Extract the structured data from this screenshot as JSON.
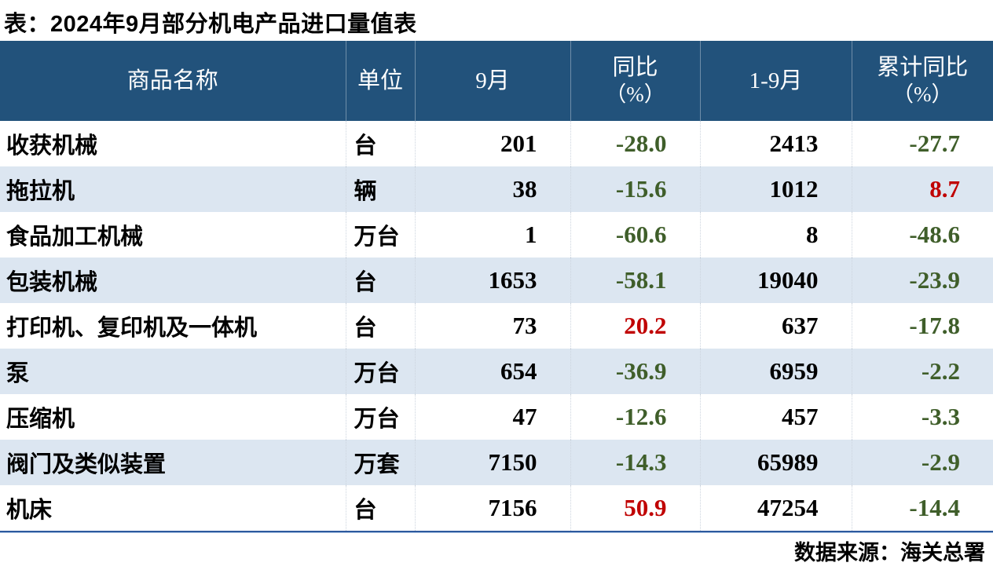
{
  "title": "表：2024年9月部分机电产品进口量值表",
  "source": "数据来源：海关总署",
  "colors": {
    "header_bg": "#22527b",
    "header_text": "#ffffff",
    "band_row": "#dce6f1",
    "negative_value": "#3f5e2a",
    "positive_value": "#c00000",
    "bottom_rule": "#2d5a9e"
  },
  "table": {
    "columns": [
      {
        "key": "name",
        "label": "商品名称",
        "sub": ""
      },
      {
        "key": "unit",
        "label": "单位",
        "sub": ""
      },
      {
        "key": "sep",
        "label": "9月",
        "sub": ""
      },
      {
        "key": "yoy",
        "label": "同比",
        "sub": "（%）"
      },
      {
        "key": "jan_sep",
        "label": "1-9月",
        "sub": ""
      },
      {
        "key": "cum_yoy",
        "label": "累计同比",
        "sub": "（%）"
      }
    ],
    "rows": [
      {
        "name": "收获机械",
        "unit": "台",
        "sep": "201",
        "yoy": "-28.0",
        "jan_sep": "2413",
        "cum_yoy": "-27.7"
      },
      {
        "name": "拖拉机",
        "unit": "辆",
        "sep": "38",
        "yoy": "-15.6",
        "jan_sep": "1012",
        "cum_yoy": "8.7"
      },
      {
        "name": "食品加工机械",
        "unit": "万台",
        "sep": "1",
        "yoy": "-60.6",
        "jan_sep": "8",
        "cum_yoy": "-48.6"
      },
      {
        "name": "包装机械",
        "unit": "台",
        "sep": "1653",
        "yoy": "-58.1",
        "jan_sep": "19040",
        "cum_yoy": "-23.9"
      },
      {
        "name": "打印机、复印机及一体机",
        "unit": "台",
        "sep": "73",
        "yoy": "20.2",
        "jan_sep": "637",
        "cum_yoy": "-17.8"
      },
      {
        "name": "泵",
        "unit": "万台",
        "sep": "654",
        "yoy": "-36.9",
        "jan_sep": "6959",
        "cum_yoy": "-2.2"
      },
      {
        "name": "压缩机",
        "unit": "万台",
        "sep": "47",
        "yoy": "-12.6",
        "jan_sep": "457",
        "cum_yoy": "-3.3"
      },
      {
        "name": "阀门及类似装置",
        "unit": "万套",
        "sep": "7150",
        "yoy": "-14.3",
        "jan_sep": "65989",
        "cum_yoy": "-2.9"
      },
      {
        "name": "机床",
        "unit": "台",
        "sep": "7156",
        "yoy": "50.9",
        "jan_sep": "47254",
        "cum_yoy": "-14.4"
      }
    ]
  }
}
